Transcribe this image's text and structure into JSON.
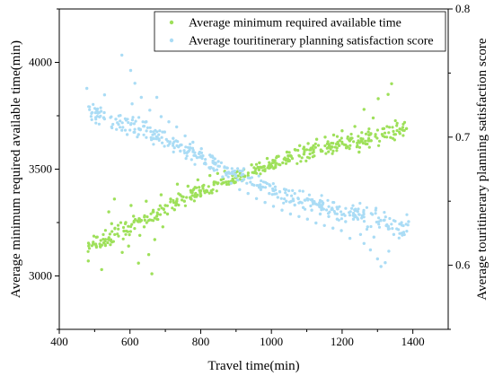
{
  "chart_data": {
    "type": "scatter",
    "title": "",
    "xlabel": "Travel time(min)",
    "ylabel": "Average minimum required available time(min)",
    "y2label": "Average touritinerary planning satisfaction score",
    "xlim": [
      400,
      1500
    ],
    "ylim": [
      2750,
      4250
    ],
    "y2lim": [
      0.55,
      0.8
    ],
    "xticks": [
      "400",
      "600",
      "800",
      "1000",
      "1200",
      "1400"
    ],
    "yticks": [
      "3000",
      "3500",
      "4000"
    ],
    "y2ticks": [
      "0.6",
      "0.7",
      "0.8"
    ],
    "grid": false,
    "legend_position": "top-right",
    "colors": {
      "series1": "#9ee05a",
      "series2": "#aadcf5"
    },
    "series": [
      {
        "name": "Average minimum required available time",
        "axis": "left",
        "trend": [
          [
            480,
            3140
          ],
          [
            600,
            3225
          ],
          [
            700,
            3320
          ],
          [
            800,
            3400
          ],
          [
            900,
            3460
          ],
          [
            1000,
            3520
          ],
          [
            1100,
            3580
          ],
          [
            1200,
            3620
          ],
          [
            1300,
            3650
          ],
          [
            1380,
            3690
          ]
        ],
        "points": [
          [
            482,
            3070
          ],
          [
            520,
            3030
          ],
          [
            526,
            3155
          ],
          [
            540,
            3300
          ],
          [
            548,
            3245
          ],
          [
            556,
            3360
          ],
          [
            578,
            3110
          ],
          [
            583,
            3210
          ],
          [
            588,
            3250
          ],
          [
            596,
            3140
          ],
          [
            603,
            3330
          ],
          [
            610,
            3280
          ],
          [
            624,
            3060
          ],
          [
            628,
            3190
          ],
          [
            632,
            3260
          ],
          [
            640,
            3230
          ],
          [
            646,
            3350
          ],
          [
            653,
            3100
          ],
          [
            662,
            3010
          ],
          [
            666,
            3300
          ],
          [
            670,
            3170
          ],
          [
            676,
            3280
          ],
          [
            688,
            3380
          ],
          [
            693,
            3230
          ],
          [
            700,
            3330
          ],
          [
            706,
            3290
          ],
          [
            715,
            3360
          ],
          [
            726,
            3310
          ],
          [
            734,
            3430
          ],
          [
            742,
            3380
          ],
          [
            754,
            3350
          ],
          [
            764,
            3420
          ],
          [
            772,
            3400
          ],
          [
            784,
            3380
          ],
          [
            792,
            3450
          ],
          [
            806,
            3420
          ],
          [
            816,
            3400
          ],
          [
            826,
            3470
          ],
          [
            838,
            3440
          ],
          [
            848,
            3480
          ],
          [
            858,
            3450
          ],
          [
            868,
            3490
          ],
          [
            880,
            3430
          ],
          [
            890,
            3470
          ],
          [
            900,
            3460
          ],
          [
            912,
            3480
          ],
          [
            922,
            3500
          ],
          [
            934,
            3470
          ],
          [
            944,
            3520
          ],
          [
            954,
            3490
          ],
          [
            966,
            3530
          ],
          [
            976,
            3510
          ],
          [
            988,
            3550
          ],
          [
            998,
            3520
          ],
          [
            1010,
            3540
          ],
          [
            1020,
            3560
          ],
          [
            1032,
            3530
          ],
          [
            1044,
            3580
          ],
          [
            1056,
            3560
          ],
          [
            1068,
            3590
          ],
          [
            1080,
            3610
          ],
          [
            1092,
            3570
          ],
          [
            1104,
            3620
          ],
          [
            1116,
            3600
          ],
          [
            1128,
            3640
          ],
          [
            1140,
            3590
          ],
          [
            1152,
            3650
          ],
          [
            1164,
            3610
          ],
          [
            1176,
            3660
          ],
          [
            1188,
            3620
          ],
          [
            1200,
            3680
          ],
          [
            1212,
            3600
          ],
          [
            1224,
            3640
          ],
          [
            1236,
            3700
          ],
          [
            1248,
            3580
          ],
          [
            1256,
            3630
          ],
          [
            1262,
            3780
          ],
          [
            1276,
            3660
          ],
          [
            1288,
            3740
          ],
          [
            1302,
            3830
          ],
          [
            1318,
            3690
          ],
          [
            1330,
            3850
          ],
          [
            1340,
            3900
          ],
          [
            1382,
            3690
          ]
        ]
      },
      {
        "name": "Average touritinerary planning satisfaction score",
        "axis": "right",
        "trend": [
          [
            480,
            0.72
          ],
          [
            600,
            0.71
          ],
          [
            700,
            0.698
          ],
          [
            800,
            0.685
          ],
          [
            900,
            0.672
          ],
          [
            1000,
            0.66
          ],
          [
            1100,
            0.65
          ],
          [
            1200,
            0.643
          ],
          [
            1300,
            0.635
          ],
          [
            1390,
            0.63
          ]
        ],
        "points": [
          [
            478,
            0.738
          ],
          [
            508,
            0.722
          ],
          [
            528,
            0.733
          ],
          [
            548,
            0.708
          ],
          [
            560,
            0.714
          ],
          [
            577,
            0.764
          ],
          [
            592,
            0.702
          ],
          [
            602,
            0.752
          ],
          [
            606,
            0.726
          ],
          [
            614,
            0.742
          ],
          [
            624,
            0.702
          ],
          [
            632,
            0.731
          ],
          [
            646,
            0.712
          ],
          [
            656,
            0.721
          ],
          [
            666,
            0.699
          ],
          [
            676,
            0.731
          ],
          [
            688,
            0.716
          ],
          [
            698,
            0.704
          ],
          [
            710,
            0.712
          ],
          [
            722,
            0.699
          ],
          [
            732,
            0.708
          ],
          [
            744,
            0.694
          ],
          [
            756,
            0.701
          ],
          [
            766,
            0.689
          ],
          [
            778,
            0.696
          ],
          [
            790,
            0.684
          ],
          [
            802,
            0.691
          ],
          [
            814,
            0.679
          ],
          [
            826,
            0.686
          ],
          [
            838,
            0.674
          ],
          [
            850,
            0.681
          ],
          [
            862,
            0.669
          ],
          [
            874,
            0.676
          ],
          [
            886,
            0.664
          ],
          [
            898,
            0.671
          ],
          [
            910,
            0.659
          ],
          [
            922,
            0.667
          ],
          [
            934,
            0.656
          ],
          [
            946,
            0.663
          ],
          [
            958,
            0.652
          ],
          [
            970,
            0.659
          ],
          [
            982,
            0.649
          ],
          [
            994,
            0.656
          ],
          [
            1006,
            0.646
          ],
          [
            1018,
            0.653
          ],
          [
            1030,
            0.643
          ],
          [
            1042,
            0.65
          ],
          [
            1054,
            0.64
          ],
          [
            1066,
            0.647
          ],
          [
            1078,
            0.638
          ],
          [
            1090,
            0.645
          ],
          [
            1102,
            0.636
          ],
          [
            1114,
            0.643
          ],
          [
            1126,
            0.633
          ],
          [
            1138,
            0.64
          ],
          [
            1150,
            0.631
          ],
          [
            1162,
            0.638
          ],
          [
            1174,
            0.629
          ],
          [
            1186,
            0.636
          ],
          [
            1198,
            0.627
          ],
          [
            1210,
            0.634
          ],
          [
            1222,
            0.621
          ],
          [
            1232,
            0.636
          ],
          [
            1244,
            0.642
          ],
          [
            1252,
            0.624
          ],
          [
            1262,
            0.617
          ],
          [
            1272,
            0.63
          ],
          [
            1280,
            0.612
          ],
          [
            1290,
            0.622
          ],
          [
            1300,
            0.605
          ],
          [
            1310,
            0.599
          ],
          [
            1322,
            0.602
          ],
          [
            1332,
            0.611
          ],
          [
            1346,
            0.624
          ],
          [
            1388,
            0.634
          ]
        ]
      }
    ]
  }
}
